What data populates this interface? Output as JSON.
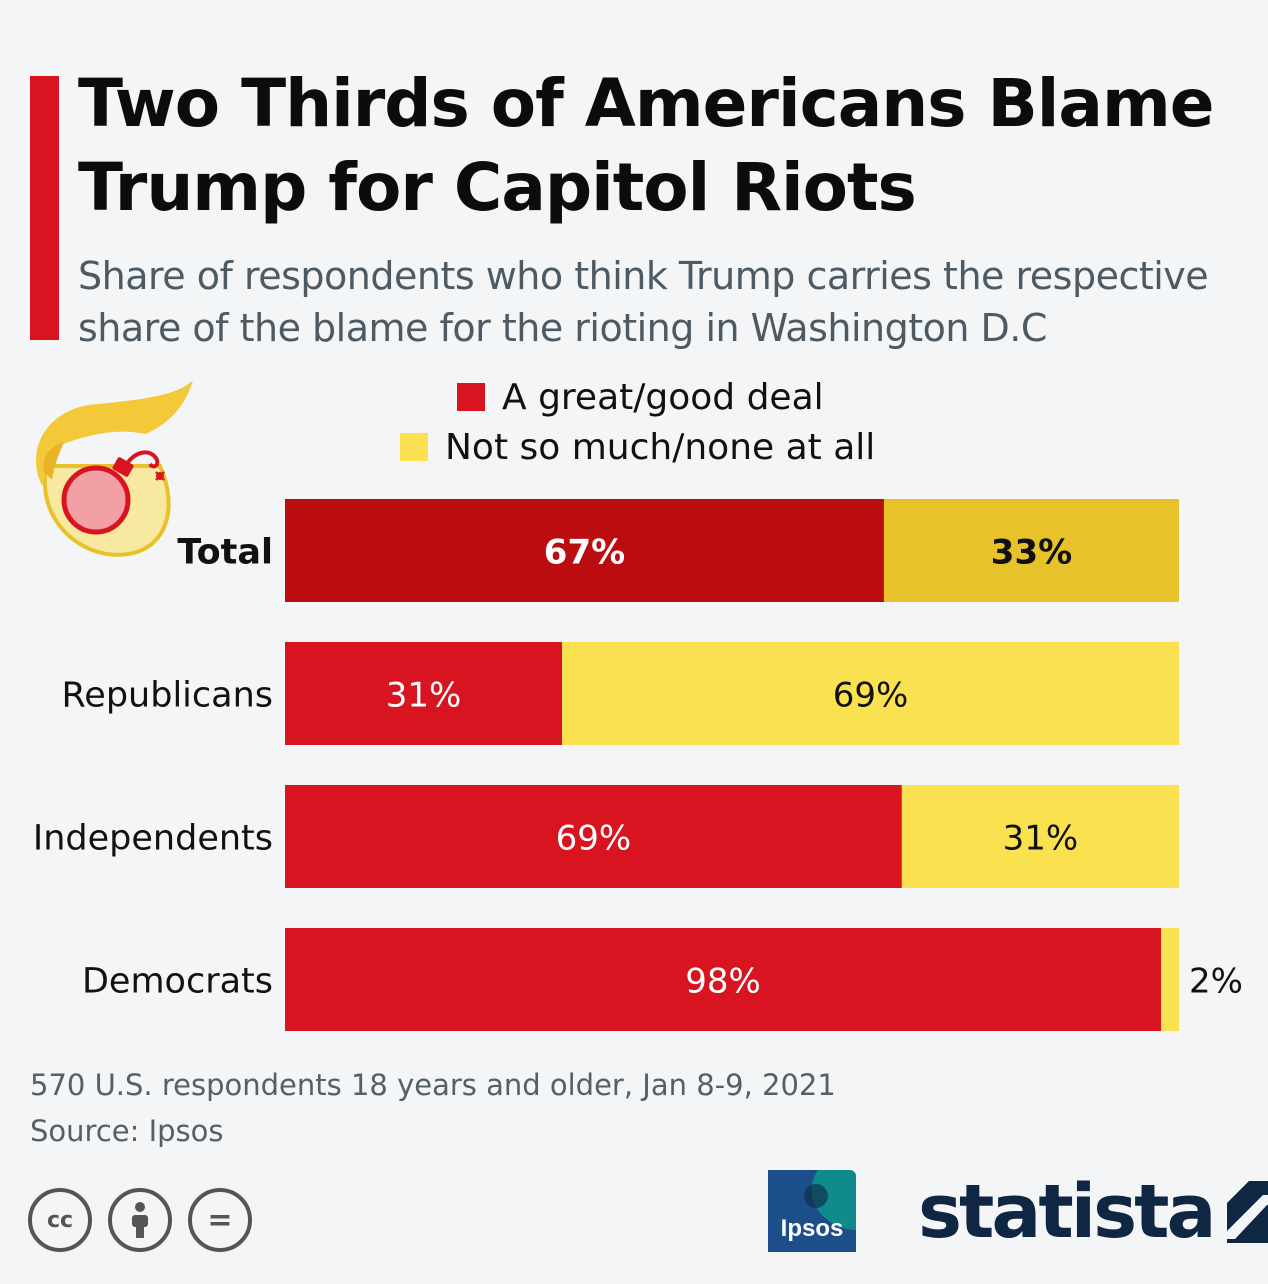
{
  "title": "Two Thirds of Americans Blame Trump for Capitol Riots",
  "subtitle": "Share of respondents who think Trump carries the respective share of the blame for the rioting in Washington D.C",
  "footnote": {
    "note": "570 U.S. respondents 18 years and older, Jan 8-9, 2021",
    "source": "Source: Ipsos"
  },
  "logos": {
    "ipsos": "Ipsos",
    "statista": "statista",
    "license_icons": [
      "cc-icon",
      "attribution-icon",
      "no-derivatives-icon"
    ],
    "license_labels": [
      "cc",
      "",
      "="
    ]
  },
  "colors": {
    "accent": "#d7141f",
    "red": "#d7141f",
    "yellow": "#f9e14f",
    "red_highlight": "#bb0c10",
    "yellow_highlight": "#e8c22b"
  },
  "chart_data": {
    "type": "bar",
    "orientation": "horizontal",
    "stacked": true,
    "categories": [
      "Total",
      "Republicans",
      "Independents",
      "Democrats"
    ],
    "highlighted_category": "Total",
    "series": [
      {
        "name": "A great/good deal",
        "values": [
          67,
          31,
          69,
          98
        ],
        "labels": [
          "67%",
          "31%",
          "69%",
          "98%"
        ]
      },
      {
        "name": "Not so much/none at all",
        "values": [
          33,
          69,
          31,
          2
        ],
        "labels": [
          "33%",
          "69%",
          "31%",
          "2%"
        ]
      }
    ],
    "xlim": [
      0,
      100
    ],
    "unit": "%",
    "legend_position": "top",
    "grid": false
  }
}
